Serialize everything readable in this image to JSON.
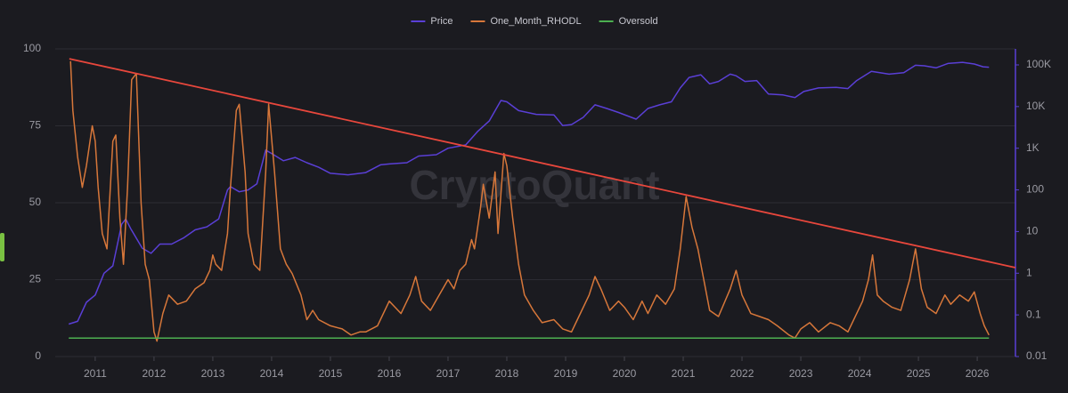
{
  "chart_data": {
    "type": "line",
    "watermark": "CryptoQuant",
    "xlim": [
      2010.32,
      2026.65
    ],
    "xticks": [
      2011,
      2012,
      2013,
      2014,
      2015,
      2016,
      2017,
      2018,
      2019,
      2020,
      2021,
      2022,
      2023,
      2024,
      2025,
      2026
    ],
    "ylim": [
      0,
      100
    ],
    "yticks": [
      0,
      25,
      50,
      75,
      100
    ],
    "y2lim": [
      0.01,
      242000
    ],
    "y2log": true,
    "y2ticks": [
      0.01,
      0.1,
      1,
      10,
      100,
      {
        "value": 1000,
        "label": "1K"
      },
      {
        "value": 10000,
        "label": "10K"
      },
      {
        "value": 100000,
        "label": "100K"
      }
    ],
    "grid": true,
    "legend": "top",
    "series": [
      {
        "name": "Price",
        "color": "#5a3fd6",
        "axis": "y2",
        "x": [
          2010.55,
          2010.7,
          2010.85,
          2011.0,
          2011.15,
          2011.3,
          2011.45,
          2011.52,
          2011.6,
          2011.8,
          2011.95,
          2012.1,
          2012.3,
          2012.5,
          2012.7,
          2012.9,
          2013.1,
          2013.25,
          2013.3,
          2013.45,
          2013.6,
          2013.75,
          2013.9,
          2014.0,
          2014.2,
          2014.4,
          2014.6,
          2014.8,
          2015.0,
          2015.3,
          2015.6,
          2015.85,
          2016.0,
          2016.3,
          2016.5,
          2016.8,
          2017.0,
          2017.3,
          2017.5,
          2017.7,
          2017.9,
          2018.0,
          2018.2,
          2018.5,
          2018.8,
          2018.95,
          2019.1,
          2019.3,
          2019.5,
          2019.7,
          2019.9,
          2020.2,
          2020.4,
          2020.6,
          2020.8,
          2020.95,
          2021.1,
          2021.3,
          2021.45,
          2021.6,
          2021.8,
          2021.9,
          2022.05,
          2022.25,
          2022.45,
          2022.7,
          2022.9,
          2023.05,
          2023.3,
          2023.6,
          2023.8,
          2023.95,
          2024.2,
          2024.5,
          2024.75,
          2024.95,
          2025.1,
          2025.3,
          2025.5,
          2025.75,
          2025.95,
          2026.1,
          2026.2
        ],
        "values": [
          0.06,
          0.07,
          0.2,
          0.3,
          1,
          1.5,
          15,
          20,
          12,
          4,
          3,
          5,
          5,
          7,
          11,
          13,
          20,
          100,
          120,
          90,
          100,
          140,
          900,
          750,
          500,
          600,
          450,
          350,
          250,
          230,
          260,
          400,
          420,
          450,
          650,
          700,
          1000,
          1200,
          2500,
          4500,
          14000,
          13000,
          8000,
          6500,
          6300,
          3500,
          3700,
          5500,
          11000,
          9000,
          7200,
          5000,
          9000,
          11000,
          13000,
          28000,
          50000,
          58000,
          35000,
          40000,
          60000,
          55000,
          40000,
          42000,
          20000,
          19000,
          16500,
          23000,
          28000,
          29000,
          27000,
          42000,
          70000,
          60000,
          65000,
          98000,
          95000,
          85000,
          108000,
          115000,
          105000,
          90000,
          88000
        ]
      },
      {
        "name": "One_Month_RHODL",
        "color": "#d7773a",
        "axis": "y",
        "x": [
          2010.58,
          2010.62,
          2010.7,
          2010.78,
          2010.85,
          2010.95,
          2011.0,
          2011.05,
          2011.12,
          2011.2,
          2011.3,
          2011.35,
          2011.42,
          2011.48,
          2011.55,
          2011.62,
          2011.7,
          2011.78,
          2011.85,
          2011.92,
          2012.0,
          2012.05,
          2012.15,
          2012.25,
          2012.4,
          2012.55,
          2012.7,
          2012.85,
          2012.95,
          2013.0,
          2013.05,
          2013.15,
          2013.25,
          2013.3,
          2013.4,
          2013.45,
          2013.55,
          2013.6,
          2013.7,
          2013.8,
          2013.9,
          2013.95,
          2014.05,
          2014.15,
          2014.25,
          2014.35,
          2014.5,
          2014.6,
          2014.7,
          2014.8,
          2015.0,
          2015.2,
          2015.35,
          2015.5,
          2015.6,
          2015.8,
          2015.9,
          2016.0,
          2016.1,
          2016.2,
          2016.35,
          2016.45,
          2016.55,
          2016.7,
          2016.85,
          2017.0,
          2017.1,
          2017.2,
          2017.3,
          2017.4,
          2017.45,
          2017.55,
          2017.6,
          2017.7,
          2017.8,
          2017.85,
          2017.95,
          2018.0,
          2018.1,
          2018.2,
          2018.3,
          2018.45,
          2018.6,
          2018.8,
          2018.95,
          2019.1,
          2019.2,
          2019.4,
          2019.5,
          2019.6,
          2019.75,
          2019.9,
          2020.0,
          2020.15,
          2020.3,
          2020.4,
          2020.55,
          2020.7,
          2020.85,
          2020.95,
          2021.05,
          2021.15,
          2021.25,
          2021.35,
          2021.45,
          2021.6,
          2021.8,
          2021.9,
          2022.0,
          2022.15,
          2022.3,
          2022.45,
          2022.6,
          2022.8,
          2022.9,
          2023.0,
          2023.15,
          2023.3,
          2023.5,
          2023.65,
          2023.8,
          2023.95,
          2024.05,
          2024.15,
          2024.22,
          2024.3,
          2024.4,
          2024.55,
          2024.7,
          2024.85,
          2024.95,
          2025.05,
          2025.15,
          2025.3,
          2025.45,
          2025.55,
          2025.7,
          2025.85,
          2025.95,
          2026.05,
          2026.12,
          2026.2
        ],
        "values": [
          96,
          80,
          65,
          55,
          62,
          75,
          70,
          55,
          40,
          35,
          70,
          72,
          45,
          30,
          55,
          90,
          92,
          50,
          30,
          25,
          8,
          5,
          14,
          20,
          17,
          18,
          22,
          24,
          28,
          33,
          30,
          28,
          40,
          55,
          80,
          82,
          60,
          40,
          30,
          28,
          60,
          82,
          60,
          35,
          30,
          27,
          20,
          12,
          15,
          12,
          10,
          9,
          7,
          8,
          8,
          10,
          14,
          18,
          16,
          14,
          20,
          26,
          18,
          15,
          20,
          25,
          22,
          28,
          30,
          38,
          35,
          48,
          56,
          45,
          60,
          40,
          66,
          62,
          45,
          30,
          20,
          15,
          11,
          12,
          9,
          8,
          12,
          20,
          26,
          22,
          15,
          18,
          16,
          12,
          18,
          14,
          20,
          17,
          22,
          35,
          52,
          42,
          35,
          25,
          15,
          13,
          22,
          28,
          20,
          14,
          13,
          12,
          10,
          7,
          6,
          9,
          11,
          8,
          11,
          10,
          8,
          14,
          18,
          25,
          33,
          20,
          18,
          16,
          15,
          25,
          35,
          22,
          16,
          14,
          20,
          17,
          20,
          18,
          21,
          14,
          10,
          7
        ]
      },
      {
        "name": "Oversold",
        "color": "#4caf50",
        "axis": "y",
        "x": [
          2010.55,
          2026.2
        ],
        "values": [
          6,
          6
        ]
      }
    ],
    "trendline": {
      "color": "#e8473c",
      "x": [
        2010.56,
        2026.65
      ],
      "values": [
        96.8,
        28.9
      ]
    }
  }
}
